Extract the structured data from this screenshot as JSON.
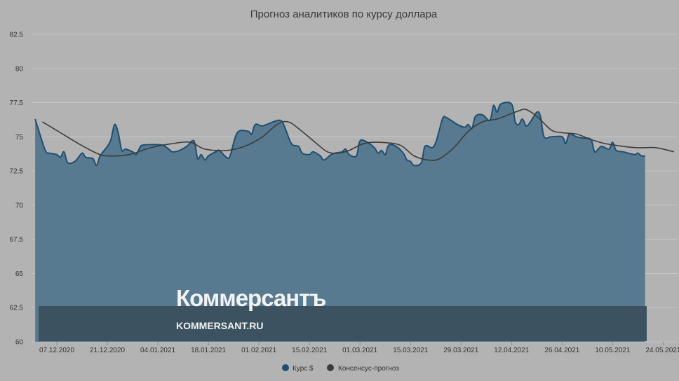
{
  "chart_data": {
    "type": "area",
    "title": "Прогноз аналитиков по курсу доллара",
    "ylim": [
      60,
      82.5
    ],
    "yticks": [
      "82.5",
      "80",
      "77.5",
      "75",
      "72.5",
      "70",
      "67.5",
      "65",
      "62.5",
      "60"
    ],
    "xticks": [
      "07.12.2020",
      "21.12.2020",
      "04.01.2021",
      "18.01.2021",
      "01.02.2021",
      "15.02.2021",
      "01.03.2021",
      "15.03.2021",
      "29.03.2021",
      "12.04.2021",
      "26.04.2021",
      "10.05.2021",
      "24.05.2021"
    ],
    "x_range": [
      "2020-11-30",
      "2021-05-28"
    ],
    "grid": true,
    "legend_position": "bottom-center",
    "series": [
      {
        "name": "Курс $",
        "kind": "area",
        "color": "#1f4e70",
        "points": [
          [
            "2020-12-01",
            76.3
          ],
          [
            "2020-12-03",
            74.6
          ],
          [
            "2020-12-04",
            73.9
          ],
          [
            "2020-12-05",
            73.8
          ],
          [
            "2020-12-07",
            73.7
          ],
          [
            "2020-12-08",
            73.5
          ],
          [
            "2020-12-09",
            73.9
          ],
          [
            "2020-12-10",
            73.1
          ],
          [
            "2020-12-12",
            73.2
          ],
          [
            "2020-12-14",
            73.8
          ],
          [
            "2020-12-15",
            73.5
          ],
          [
            "2020-12-17",
            73.4
          ],
          [
            "2020-12-18",
            72.9
          ],
          [
            "2020-12-19",
            73.6
          ],
          [
            "2020-12-21",
            74.3
          ],
          [
            "2020-12-22",
            74.8
          ],
          [
            "2020-12-23",
            75.9
          ],
          [
            "2020-12-24",
            75.3
          ],
          [
            "2020-12-25",
            74.0
          ],
          [
            "2020-12-26",
            74.1
          ],
          [
            "2020-12-28",
            73.9
          ],
          [
            "2020-12-29",
            73.7
          ],
          [
            "2020-12-30",
            74.2
          ],
          [
            "2020-12-31",
            74.4
          ],
          [
            "2021-01-05",
            74.4
          ],
          [
            "2021-01-07",
            74.1
          ],
          [
            "2021-01-08",
            73.9
          ],
          [
            "2021-01-10",
            74.0
          ],
          [
            "2021-01-12",
            74.3
          ],
          [
            "2021-01-14",
            74.7
          ],
          [
            "2021-01-15",
            73.4
          ],
          [
            "2021-01-16",
            73.7
          ],
          [
            "2021-01-17",
            73.3
          ],
          [
            "2021-01-18",
            73.6
          ],
          [
            "2021-01-20",
            73.9
          ],
          [
            "2021-01-21",
            74.0
          ],
          [
            "2021-01-23",
            73.5
          ],
          [
            "2021-01-24",
            73.6
          ],
          [
            "2021-01-26",
            75.3
          ],
          [
            "2021-01-29",
            75.4
          ],
          [
            "2021-01-30",
            75.2
          ],
          [
            "2021-01-31",
            75.9
          ],
          [
            "2021-02-02",
            75.8
          ],
          [
            "2021-02-05",
            76.1
          ],
          [
            "2021-02-07",
            76.2
          ],
          [
            "2021-02-08",
            75.8
          ],
          [
            "2021-02-10",
            74.5
          ],
          [
            "2021-02-12",
            74.3
          ],
          [
            "2021-02-13",
            73.8
          ],
          [
            "2021-02-15",
            73.7
          ],
          [
            "2021-02-16",
            73.9
          ],
          [
            "2021-02-18",
            73.6
          ],
          [
            "2021-02-19",
            73.3
          ],
          [
            "2021-02-21",
            73.7
          ],
          [
            "2021-02-22",
            73.8
          ],
          [
            "2021-02-24",
            73.9
          ],
          [
            "2021-02-25",
            74.1
          ],
          [
            "2021-02-26",
            73.7
          ],
          [
            "2021-02-28",
            73.6
          ],
          [
            "2021-03-01",
            74.7
          ],
          [
            "2021-03-03",
            74.6
          ],
          [
            "2021-03-05",
            74.2
          ],
          [
            "2021-03-06",
            73.8
          ],
          [
            "2021-03-07",
            74.0
          ],
          [
            "2021-03-08",
            73.7
          ],
          [
            "2021-03-09",
            74.4
          ],
          [
            "2021-03-11",
            74.3
          ],
          [
            "2021-03-13",
            73.8
          ],
          [
            "2021-03-14",
            73.3
          ],
          [
            "2021-03-15",
            73.2
          ],
          [
            "2021-03-16",
            72.9
          ],
          [
            "2021-03-18",
            73.1
          ],
          [
            "2021-03-19",
            74.3
          ],
          [
            "2021-03-21",
            74.2
          ],
          [
            "2021-03-22",
            74.6
          ],
          [
            "2021-03-23",
            75.5
          ],
          [
            "2021-03-24",
            76.4
          ],
          [
            "2021-03-25",
            76.4
          ],
          [
            "2021-03-28",
            75.9
          ],
          [
            "2021-03-30",
            75.7
          ],
          [
            "2021-03-31",
            75.9
          ],
          [
            "2021-04-01",
            75.6
          ],
          [
            "2021-04-02",
            76.5
          ],
          [
            "2021-04-04",
            76.6
          ],
          [
            "2021-04-06",
            76.2
          ],
          [
            "2021-04-07",
            77.3
          ],
          [
            "2021-04-08",
            76.8
          ],
          [
            "2021-04-09",
            77.4
          ],
          [
            "2021-04-12",
            77.4
          ],
          [
            "2021-04-13",
            76.1
          ],
          [
            "2021-04-14",
            75.9
          ],
          [
            "2021-04-15",
            76.3
          ],
          [
            "2021-04-16",
            75.8
          ],
          [
            "2021-04-17",
            76.0
          ],
          [
            "2021-04-19",
            76.8
          ],
          [
            "2021-04-20",
            76.5
          ],
          [
            "2021-04-21",
            75.0
          ],
          [
            "2021-04-23",
            75.0
          ],
          [
            "2021-04-26",
            75.0
          ],
          [
            "2021-04-27",
            74.5
          ],
          [
            "2021-04-28",
            75.2
          ],
          [
            "2021-04-30",
            75.0
          ],
          [
            "2021-05-02",
            74.9
          ],
          [
            "2021-05-04",
            74.8
          ],
          [
            "2021-05-05",
            73.9
          ],
          [
            "2021-05-06",
            74.1
          ],
          [
            "2021-05-07",
            74.3
          ],
          [
            "2021-05-09",
            74.1
          ],
          [
            "2021-05-10",
            74.6
          ],
          [
            "2021-05-11",
            74.0
          ],
          [
            "2021-05-13",
            73.9
          ],
          [
            "2021-05-16",
            73.7
          ],
          [
            "2021-05-17",
            73.8
          ],
          [
            "2021-05-18",
            73.6
          ],
          [
            "2021-05-19",
            73.6
          ]
        ]
      },
      {
        "name": "Консенсус-прогноз",
        "kind": "line",
        "color": "#3c3c3c",
        "points": [
          [
            "2020-12-03",
            76.1
          ],
          [
            "2020-12-08",
            75.3
          ],
          [
            "2020-12-13",
            74.5
          ],
          [
            "2020-12-18",
            73.8
          ],
          [
            "2020-12-21",
            73.6
          ],
          [
            "2020-12-27",
            73.7
          ],
          [
            "2021-01-02",
            74.2
          ],
          [
            "2021-01-08",
            74.5
          ],
          [
            "2021-01-13",
            74.6
          ],
          [
            "2021-01-17",
            74.1
          ],
          [
            "2021-01-23",
            74.0
          ],
          [
            "2021-01-28",
            74.3
          ],
          [
            "2021-02-02",
            75.0
          ],
          [
            "2021-02-06",
            75.9
          ],
          [
            "2021-02-09",
            76.1
          ],
          [
            "2021-02-12",
            75.6
          ],
          [
            "2021-02-17",
            74.5
          ],
          [
            "2021-02-20",
            73.9
          ],
          [
            "2021-02-23",
            73.8
          ],
          [
            "2021-02-26",
            74.0
          ],
          [
            "2021-03-02",
            74.5
          ],
          [
            "2021-03-06",
            74.6
          ],
          [
            "2021-03-12",
            74.4
          ],
          [
            "2021-03-16",
            73.6
          ],
          [
            "2021-03-20",
            73.3
          ],
          [
            "2021-03-23",
            73.4
          ],
          [
            "2021-03-27",
            74.2
          ],
          [
            "2021-03-31",
            75.4
          ],
          [
            "2021-04-04",
            76.1
          ],
          [
            "2021-04-08",
            76.3
          ],
          [
            "2021-04-11",
            76.6
          ],
          [
            "2021-04-14",
            76.9
          ],
          [
            "2021-04-16",
            77.0
          ],
          [
            "2021-04-19",
            76.5
          ],
          [
            "2021-04-23",
            75.5
          ],
          [
            "2021-04-26",
            75.3
          ],
          [
            "2021-04-30",
            75.2
          ],
          [
            "2021-05-04",
            74.8
          ],
          [
            "2021-05-08",
            74.5
          ],
          [
            "2021-05-13",
            74.3
          ],
          [
            "2021-05-17",
            74.2
          ],
          [
            "2021-05-22",
            74.2
          ],
          [
            "2021-05-27",
            73.9
          ]
        ]
      }
    ]
  },
  "watermark": {
    "brand": "Коммерсантъ",
    "url": "KOMMERSANT.RU",
    "band_color": "#3d5261"
  },
  "legend": {
    "items": [
      {
        "label": "Курс $",
        "color": "#1f4e70"
      },
      {
        "label": "Консенсус-прогноз",
        "color": "#3c3c3c"
      }
    ]
  }
}
